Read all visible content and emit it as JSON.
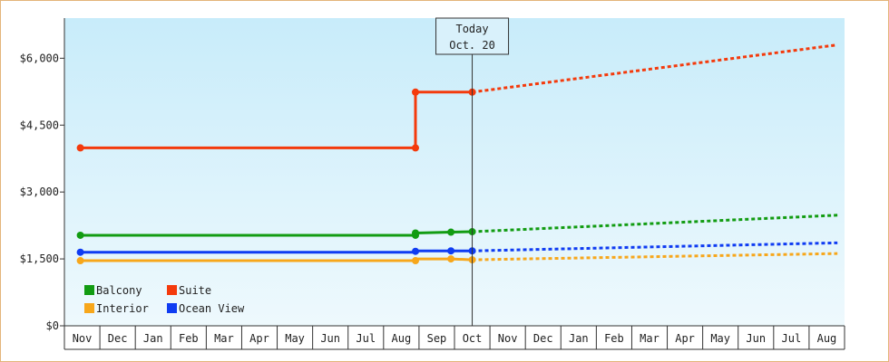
{
  "chart_data": {
    "type": "line",
    "title": "",
    "xlabel": "",
    "ylabel": "",
    "ylim": [
      0,
      6900
    ],
    "y_ticks": [
      0,
      1500,
      3000,
      4500,
      6000
    ],
    "y_tick_labels": [
      "$0",
      "$1,500",
      "$3,000",
      "$4,500",
      "$6,000"
    ],
    "x_tick_labels": [
      "Nov",
      "Dec",
      "Jan",
      "Feb",
      "Mar",
      "Apr",
      "May",
      "Jun",
      "Jul",
      "Aug",
      "Sep",
      "Oct",
      "Nov",
      "Dec",
      "Jan",
      "Feb",
      "Mar",
      "Apr",
      "May",
      "Jun",
      "Jul",
      "Aug"
    ],
    "grid": false,
    "legend_position": "bottom-left",
    "today_marker": {
      "x": 11.0,
      "line1": "Today",
      "line2": "Oct. 20"
    },
    "series": [
      {
        "name": "Balcony",
        "color": "#129c12",
        "points": [
          [
            -0.05,
            2030
          ],
          [
            9.4,
            2030
          ],
          [
            9.4,
            2080
          ],
          [
            10.4,
            2100
          ],
          [
            11.0,
            2110
          ]
        ],
        "markers": [
          [
            -0.05,
            2030
          ],
          [
            9.4,
            2030
          ],
          [
            9.4,
            2080
          ],
          [
            10.4,
            2100
          ],
          [
            11.0,
            2110
          ]
        ],
        "forecast": [
          [
            11.0,
            2110
          ],
          [
            21.3,
            2480
          ]
        ]
      },
      {
        "name": "Suite",
        "color": "#f43a0c",
        "points": [
          [
            -0.05,
            3990
          ],
          [
            9.4,
            3990
          ],
          [
            9.4,
            5240
          ],
          [
            11.0,
            5240
          ]
        ],
        "markers": [
          [
            -0.05,
            3990
          ],
          [
            9.4,
            3990
          ],
          [
            9.4,
            5240
          ],
          [
            11.0,
            5240
          ]
        ],
        "forecast": [
          [
            11.0,
            5240
          ],
          [
            21.3,
            6300
          ]
        ]
      },
      {
        "name": "Interior",
        "color": "#f7a71b",
        "points": [
          [
            -0.05,
            1460
          ],
          [
            9.4,
            1460
          ],
          [
            9.4,
            1500
          ],
          [
            10.4,
            1500
          ],
          [
            11.0,
            1480
          ]
        ],
        "markers": [
          [
            -0.05,
            1460
          ],
          [
            9.4,
            1460
          ],
          [
            10.4,
            1500
          ],
          [
            11.0,
            1480
          ]
        ],
        "forecast": [
          [
            11.0,
            1480
          ],
          [
            21.3,
            1620
          ]
        ]
      },
      {
        "name": "Ocean View",
        "color": "#0f3cf2",
        "points": [
          [
            -0.05,
            1650
          ],
          [
            9.4,
            1650
          ],
          [
            9.4,
            1680
          ],
          [
            10.4,
            1680
          ],
          [
            11.0,
            1680
          ]
        ],
        "markers": [
          [
            -0.05,
            1650
          ],
          [
            9.4,
            1670
          ],
          [
            10.4,
            1680
          ],
          [
            11.0,
            1680
          ]
        ],
        "forecast": [
          [
            11.0,
            1680
          ],
          [
            21.3,
            1860
          ]
        ]
      }
    ]
  }
}
